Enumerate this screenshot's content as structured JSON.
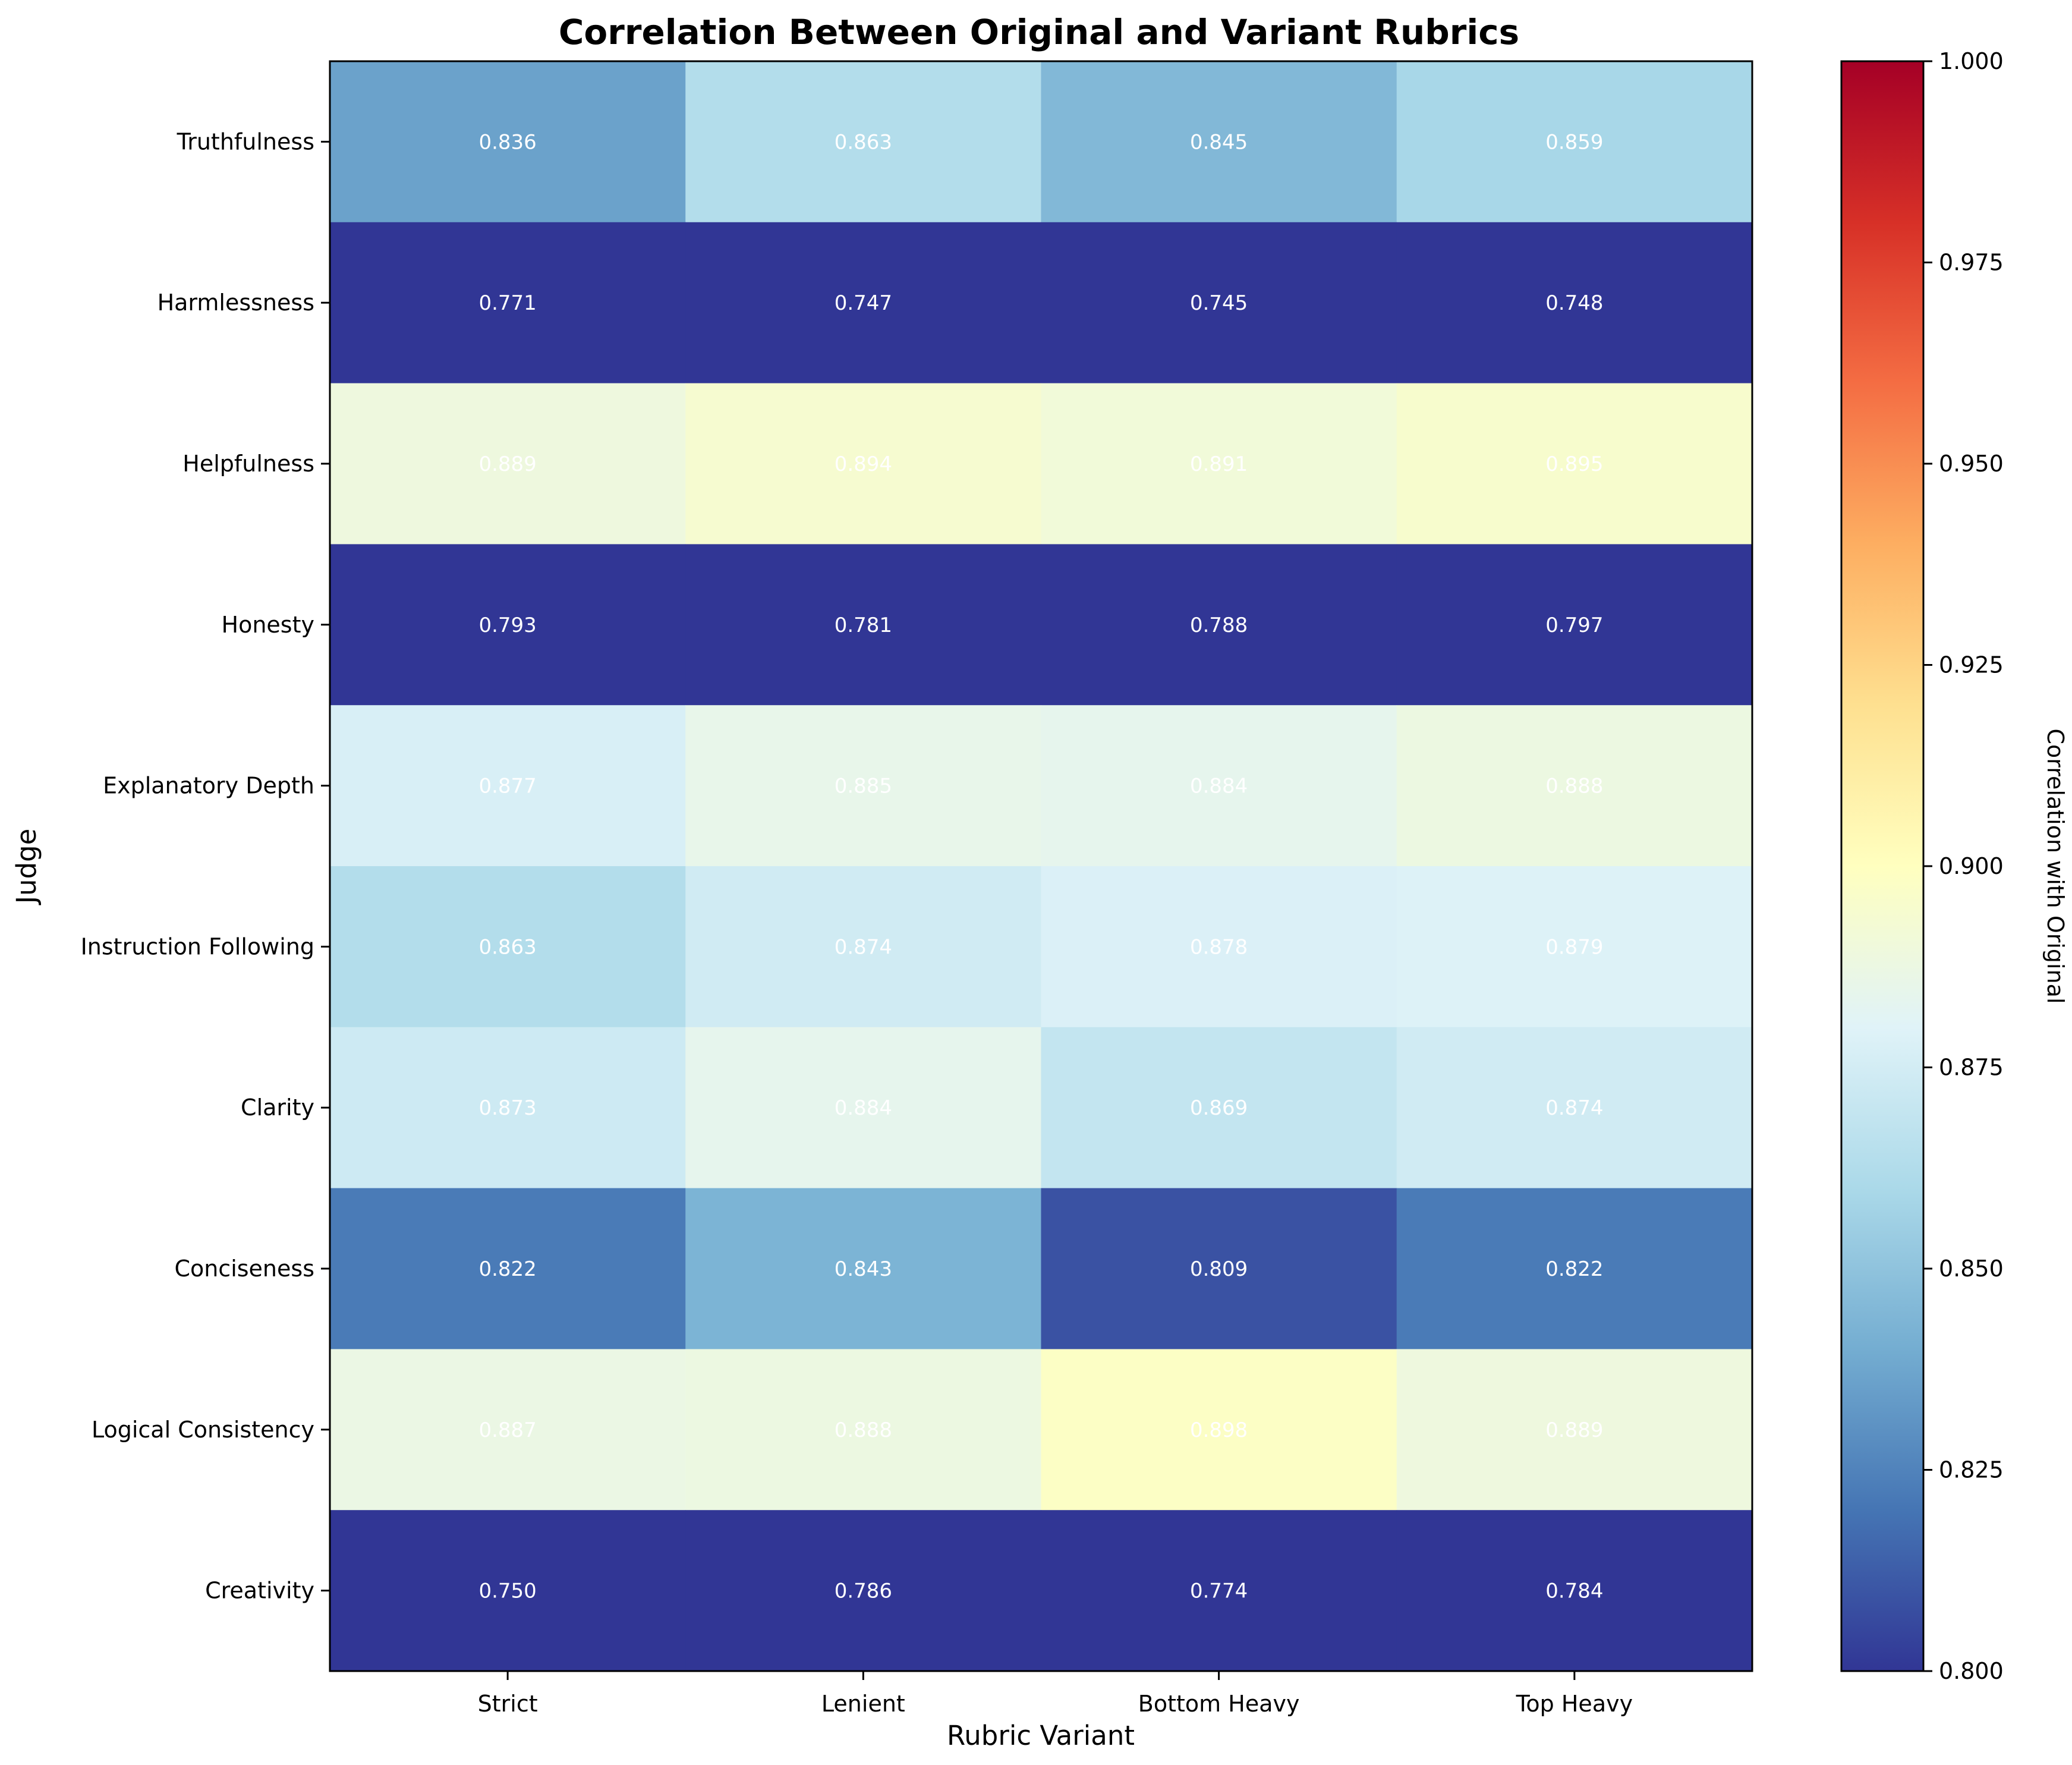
{
  "chart_data": {
    "type": "heatmap",
    "title": "Correlation Between Original and Variant Rubrics",
    "xlabel": "Rubric Variant",
    "ylabel": "Judge",
    "x_categories": [
      "Strict",
      "Lenient",
      "Bottom Heavy",
      "Top Heavy"
    ],
    "y_categories": [
      "Truthfulness",
      "Harmlessness",
      "Helpfulness",
      "Honesty",
      "Explanatory Depth",
      "Instruction Following",
      "Clarity",
      "Conciseness",
      "Logical Consistency",
      "Creativity"
    ],
    "values": [
      [
        0.836,
        0.863,
        0.845,
        0.859
      ],
      [
        0.771,
        0.747,
        0.745,
        0.748
      ],
      [
        0.889,
        0.894,
        0.891,
        0.895
      ],
      [
        0.793,
        0.781,
        0.788,
        0.797
      ],
      [
        0.877,
        0.885,
        0.884,
        0.888
      ],
      [
        0.863,
        0.874,
        0.878,
        0.879
      ],
      [
        0.873,
        0.884,
        0.869,
        0.874
      ],
      [
        0.822,
        0.843,
        0.809,
        0.822
      ],
      [
        0.887,
        0.888,
        0.898,
        0.889
      ],
      [
        0.75,
        0.786,
        0.774,
        0.784
      ]
    ],
    "value_format": "0.000",
    "colorbar": {
      "label": "Correlation with Original",
      "range": [
        0.8,
        1.0
      ],
      "ticks": [
        "0.800",
        "0.825",
        "0.850",
        "0.875",
        "0.900",
        "0.925",
        "0.950",
        "0.975",
        "1.000"
      ],
      "colormap": "RdYlBu_r",
      "colormap_stops": [
        "#313695",
        "#4575b4",
        "#74add1",
        "#abd9e9",
        "#e0f3f8",
        "#ffffbf",
        "#fee090",
        "#fdae61",
        "#f46d43",
        "#d73027",
        "#a50026"
      ]
    },
    "cell_text_color": "#ffffff",
    "grid": false
  }
}
